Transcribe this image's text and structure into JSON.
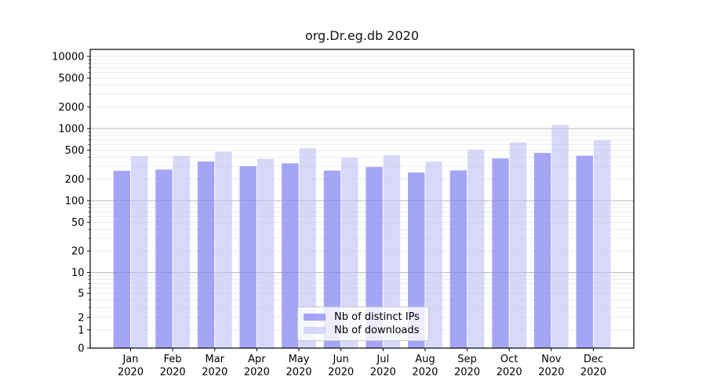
{
  "figure": {
    "title": "org.Dr.eg.db 2020"
  },
  "legend": {
    "items": [
      {
        "label": "Nb of distinct IPs",
        "series": "distinct_ips"
      },
      {
        "label": "Nb of downloads",
        "series": "downloads"
      }
    ],
    "position": "bottom-center"
  },
  "chart_data": {
    "type": "bar",
    "title": "org.Dr.eg.db 2020",
    "scale_y": "pseudo-log (asinh)",
    "categories": [
      "Jan",
      "Feb",
      "Mar",
      "Apr",
      "May",
      "Jun",
      "Jul",
      "Aug",
      "Sep",
      "Oct",
      "Nov",
      "Dec"
    ],
    "category_year": "2020",
    "series": [
      {
        "name": "Nb of distinct IPs",
        "color": "rgba(135,135,242,0.75)",
        "values": [
          260,
          270,
          350,
          300,
          330,
          262,
          293,
          246,
          263,
          385,
          460,
          420
        ]
      },
      {
        "name": "Nb of downloads",
        "color": "rgba(190,190,245,0.6)",
        "values": [
          415,
          420,
          480,
          380,
          530,
          395,
          425,
          348,
          510,
          645,
          1125,
          690
        ]
      }
    ],
    "yticks": [
      0,
      1,
      2,
      5,
      10,
      20,
      50,
      100,
      200,
      500,
      1000,
      2000,
      5000,
      10000
    ],
    "ylim": [
      0,
      12500
    ],
    "grid": {
      "on": true,
      "major_values": [
        10,
        100,
        1000
      ],
      "major_color": "#b4b4b4",
      "minor_color": "#ebebeb"
    },
    "frame_color": "#000000",
    "legend_position": "lower center"
  }
}
